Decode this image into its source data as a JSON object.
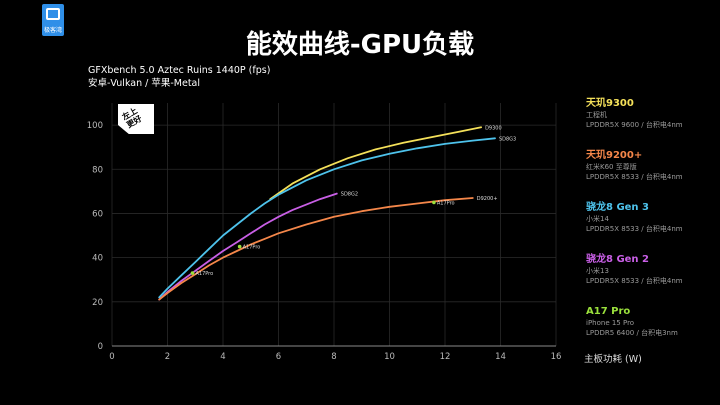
{
  "header": {
    "logo_text": "极客湾",
    "title": "能效曲线-GPU负载"
  },
  "badge_text": "左上\n更好",
  "colors": {
    "d9300": "#f5e15a",
    "d9200p": "#f5874a",
    "sd8g3": "#4ec3ec",
    "sd8g2": "#c95fe6",
    "a17pro": "#9ae03c",
    "grid": "#2a2a2a",
    "axis": "#8a8a8a"
  },
  "chart_data": {
    "type": "line",
    "title": "GFXbench 5.0 Aztec Ruins 1440P (fps)",
    "subtitle": "安卓-Vulkan / 苹果-Metal",
    "xlabel": "主板功耗 (W)",
    "ylabel": "",
    "xlim": [
      0,
      16
    ],
    "ylim": [
      0,
      110
    ],
    "xticks": [
      0,
      2,
      4,
      6,
      8,
      10,
      12,
      14,
      16
    ],
    "yticks": [
      0,
      20,
      40,
      60,
      80,
      100
    ],
    "grid": true,
    "legend_position": "right",
    "series": [
      {
        "name": "天玑9300",
        "key": "d9300",
        "end_label": "D9300",
        "x": [
          5.7,
          6.5,
          7.5,
          8.5,
          9.5,
          10.5,
          11.5,
          12.5,
          13.3
        ],
        "y": [
          66.5,
          73.5,
          80,
          85,
          89,
          92,
          94.5,
          97,
          99
        ]
      },
      {
        "name": "骁龙8 Gen 3",
        "key": "sd8g3",
        "end_label": "SD8G3",
        "x": [
          1.7,
          2,
          2.5,
          3,
          3.5,
          4,
          4.5,
          5,
          5.5,
          6,
          7,
          8,
          9,
          10,
          11,
          12,
          13,
          13.8
        ],
        "y": [
          22,
          26,
          32,
          38,
          44,
          50,
          55,
          60,
          64.5,
          68.5,
          75,
          80,
          84,
          87,
          89.5,
          91.5,
          93,
          94
        ]
      },
      {
        "name": "骁龙8 Gen 2",
        "key": "sd8g2",
        "end_label": "SD8G2",
        "x": [
          1.7,
          2,
          2.5,
          3,
          3.5,
          4,
          4.5,
          5,
          5.5,
          6,
          6.5,
          7,
          7.5,
          8.1
        ],
        "y": [
          21,
          24.5,
          29.5,
          34,
          38.5,
          43,
          47,
          51,
          55,
          58.5,
          61.5,
          64,
          66.5,
          69
        ]
      },
      {
        "name": "天玑9200+",
        "key": "d9200p",
        "end_label": "D9200+",
        "x": [
          1.7,
          2,
          2.5,
          3,
          3.5,
          4,
          4.5,
          5,
          5.5,
          6,
          7,
          8,
          9,
          10,
          11,
          12,
          13
        ],
        "y": [
          21,
          24,
          28.5,
          32.5,
          36.5,
          40,
          43,
          46,
          48.5,
          51,
          55,
          58.5,
          61,
          63,
          64.5,
          66,
          67
        ]
      }
    ],
    "markers": [
      {
        "label": "A17Pro",
        "key": "a17pro",
        "x": 2.9,
        "y": 33
      },
      {
        "label": "A17Pro",
        "key": "a17pro",
        "x": 4.6,
        "y": 45
      },
      {
        "label": "A17Pro",
        "key": "a17pro",
        "x": 11.6,
        "y": 65
      }
    ]
  },
  "legend": [
    {
      "name": "天玑9300",
      "key": "d9300",
      "lines": [
        "工程机",
        "LPDDR5X 9600 / 台积电4nm"
      ]
    },
    {
      "name": "天玑9200+",
      "key": "d9200p",
      "lines": [
        "红米K60 至尊版",
        "LPDDR5X 8533 / 台积电4nm"
      ]
    },
    {
      "name": "骁龙8 Gen 3",
      "key": "sd8g3",
      "lines": [
        "小米14",
        "LPDDR5X 8533 / 台积电4nm"
      ]
    },
    {
      "name": "骁龙8 Gen 2",
      "key": "sd8g2",
      "lines": [
        "小米13",
        "LPDDR5X 8533 / 台积电4nm"
      ]
    },
    {
      "name": "A17 Pro",
      "key": "a17pro",
      "lines": [
        "iPhone 15 Pro",
        "LPDDR5 6400 / 台积电3nm"
      ]
    }
  ]
}
